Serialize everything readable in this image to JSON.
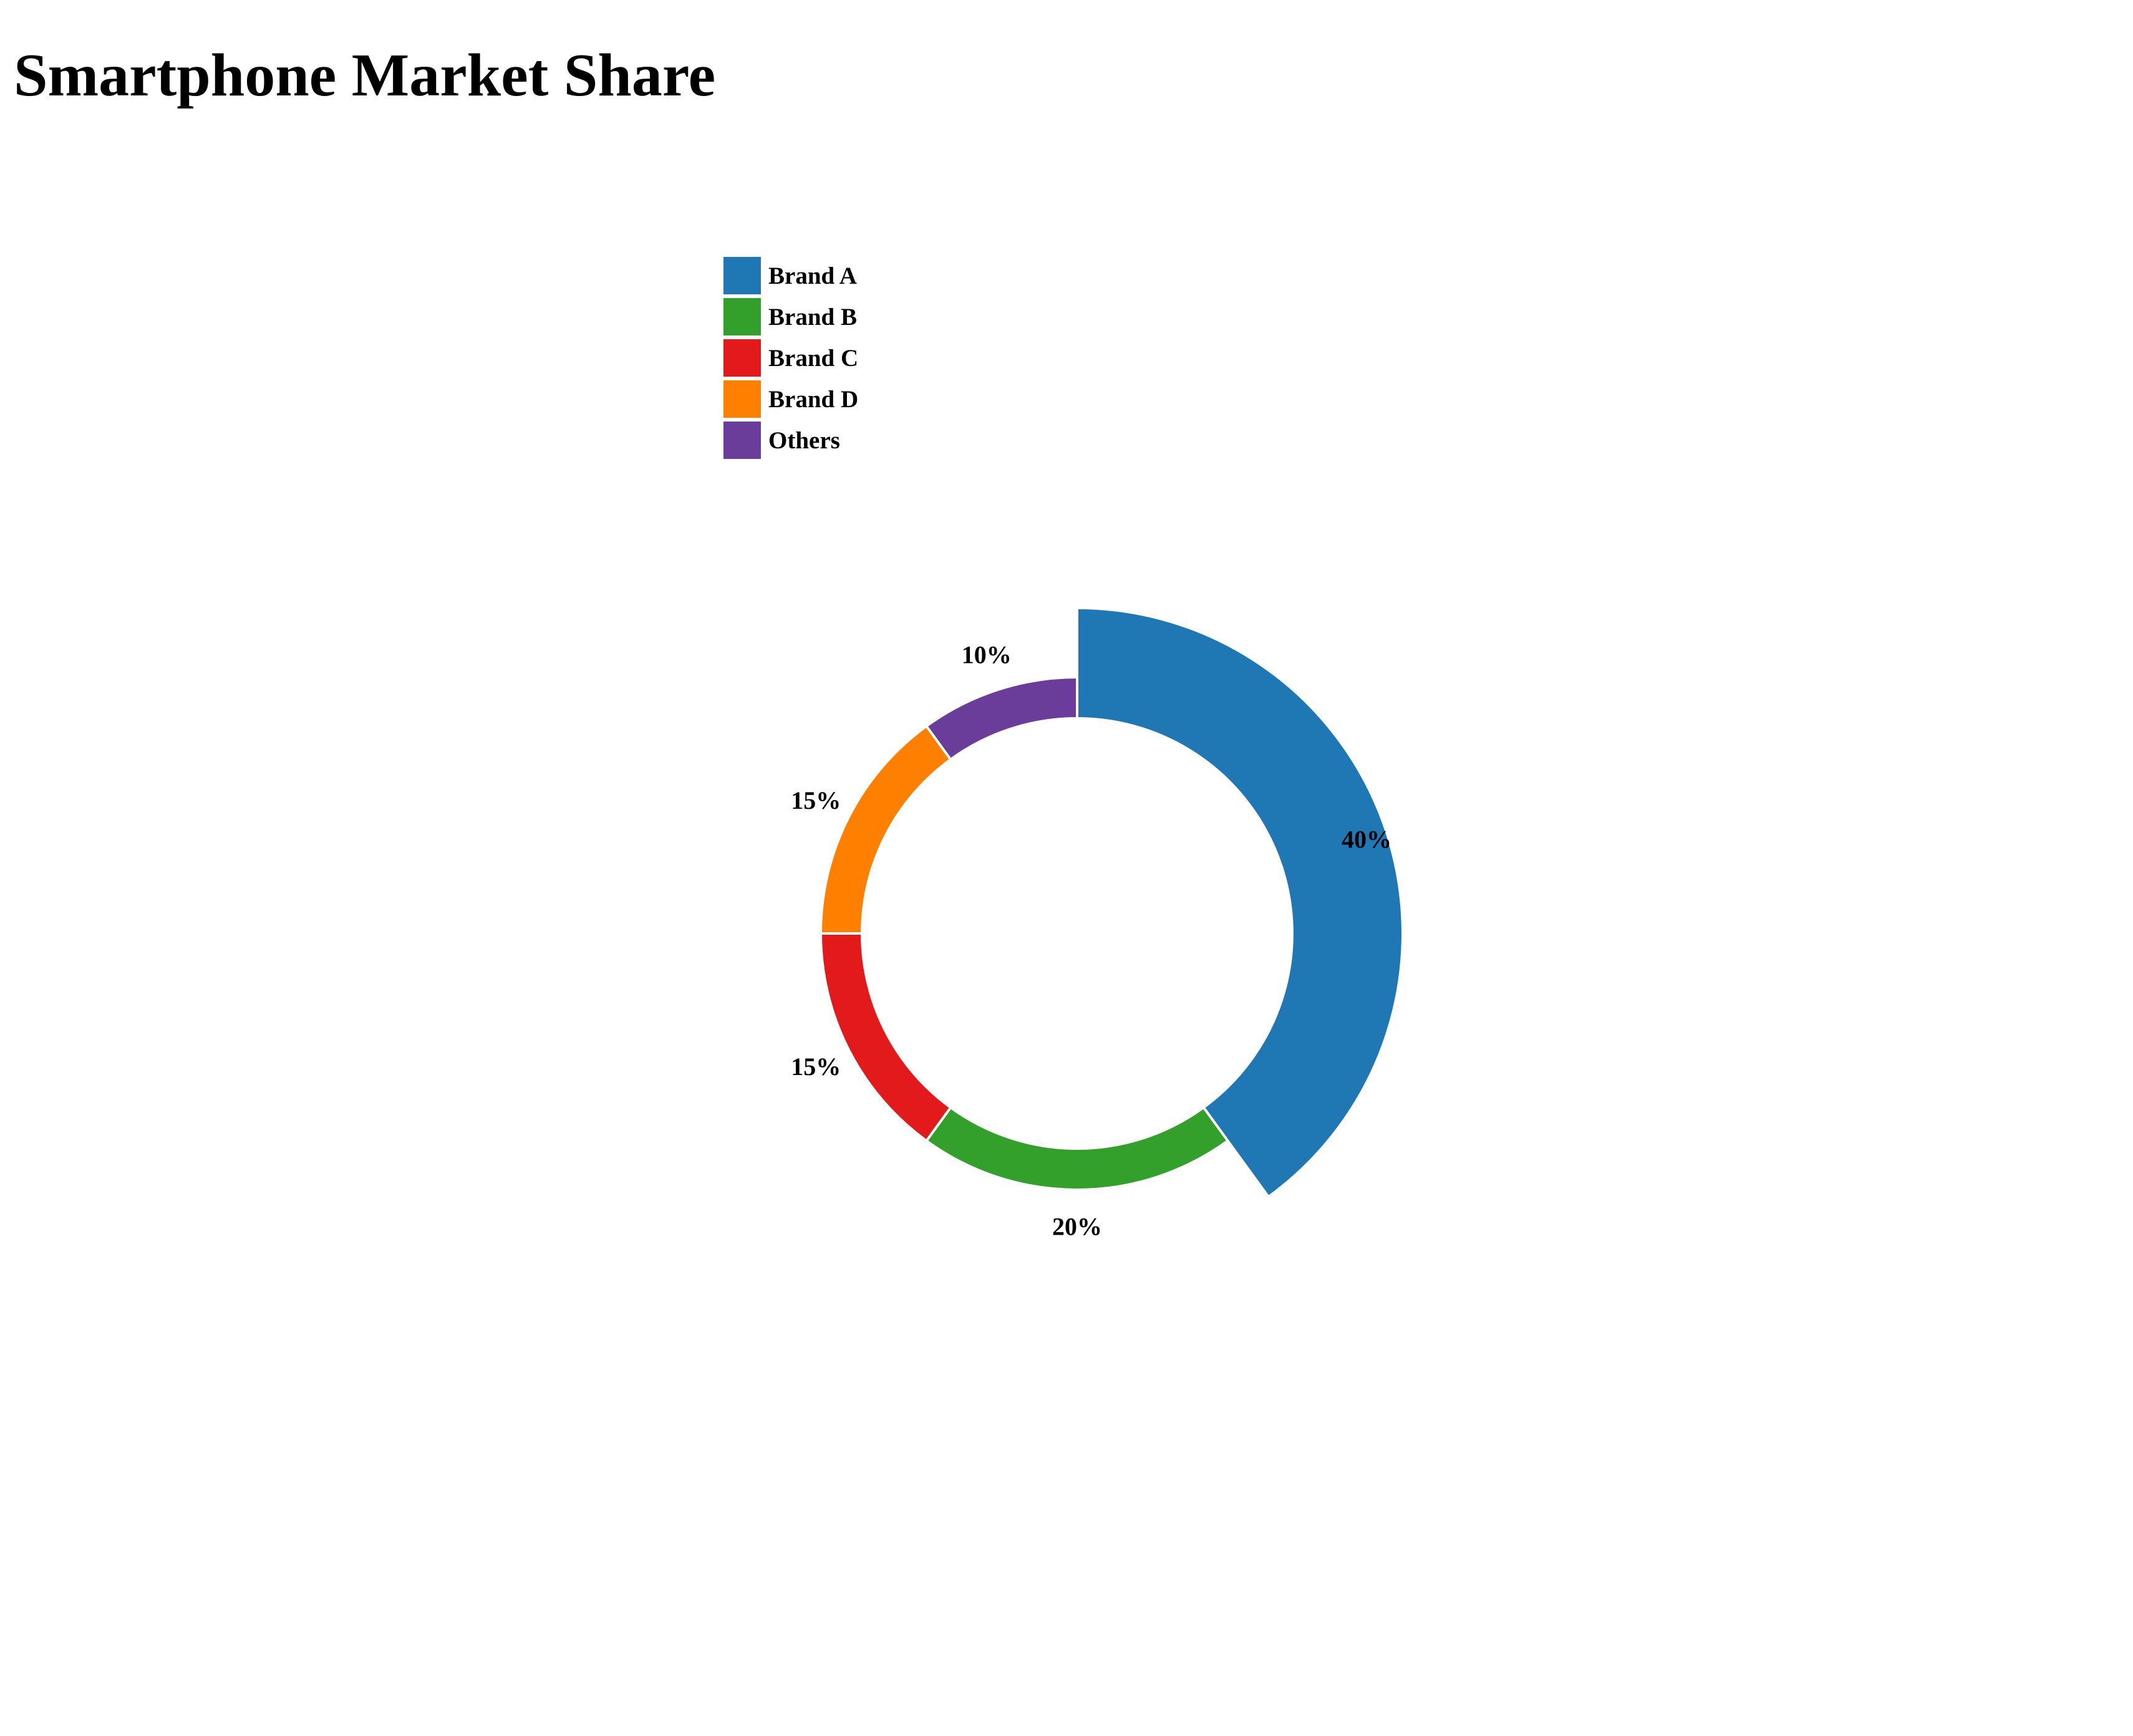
{
  "title": "Smartphone Market Share",
  "chart_data": {
    "type": "pie",
    "title": "Smartphone Market Share",
    "categories": [
      "Brand A",
      "Brand B",
      "Brand C",
      "Brand D",
      "Others"
    ],
    "values": [
      40,
      20,
      15,
      15,
      10
    ],
    "labels": [
      "40%",
      "20%",
      "15%",
      "15%",
      "10%"
    ],
    "colors": [
      "#1f77b4",
      "#33a02c",
      "#e31a1c",
      "#ff7f00",
      "#6a3d9a"
    ],
    "style": "donut",
    "highlighted": "Brand A",
    "legend": "top-left",
    "xlabel": "",
    "ylabel": ""
  },
  "legend": {
    "items": [
      {
        "label": "Brand A",
        "color": "#1f77b4"
      },
      {
        "label": "Brand B",
        "color": "#33a02c"
      },
      {
        "label": "Brand C",
        "color": "#e31a1c"
      },
      {
        "label": "Brand D",
        "color": "#ff7f00"
      },
      {
        "label": "Others",
        "color": "#6a3d9a"
      }
    ]
  }
}
